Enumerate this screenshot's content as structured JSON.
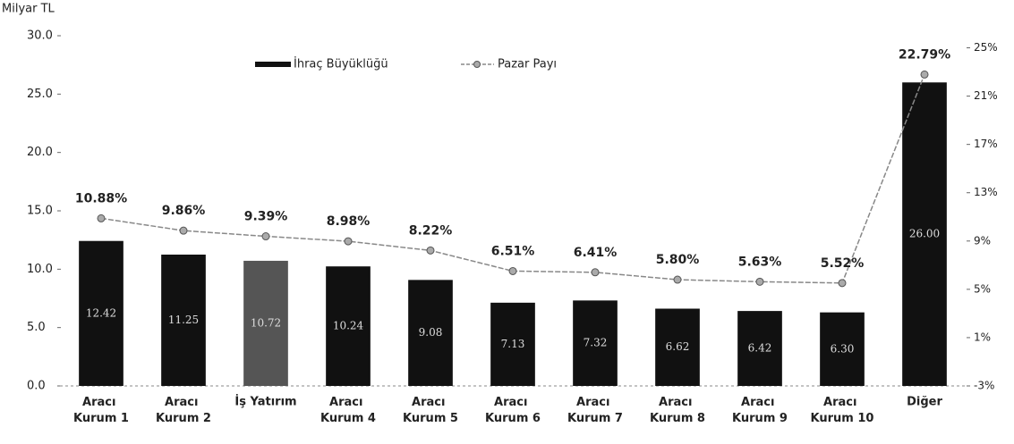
{
  "chart_data": {
    "type": "bar-line",
    "y_label": "Milyar TL",
    "categories": [
      "Aracı Kurum 1",
      "Aracı Kurum 2",
      "İş Yatırım",
      "Aracı Kurum 4",
      "Aracı Kurum 5",
      "Aracı Kurum 6",
      "Aracı Kurum 7",
      "Aracı Kurum 8",
      "Aracı Kurum 9",
      "Aracı Kurum 10",
      "Diğer"
    ],
    "series": [
      {
        "name": "İhraç Büyüklüğü",
        "type": "bar",
        "colors": [
          "#111111",
          "#111111",
          "#555555",
          "#111111",
          "#111111",
          "#111111",
          "#111111",
          "#111111",
          "#111111",
          "#111111",
          "#111111"
        ],
        "values": [
          12.42,
          11.25,
          10.72,
          10.24,
          9.08,
          7.13,
          7.32,
          6.62,
          6.42,
          6.3,
          26.0
        ],
        "value_labels": [
          "12.42",
          "11.25",
          "10.72",
          "10.24",
          "9.08",
          "7.13",
          "7.32",
          "6.62",
          "6.42",
          "6.30",
          "26.00"
        ]
      },
      {
        "name": "Pazar Payı",
        "type": "line",
        "axis": "y2",
        "color": "#888888",
        "values": [
          10.88,
          9.86,
          9.39,
          8.98,
          8.22,
          6.51,
          6.41,
          5.8,
          5.63,
          5.52,
          22.79
        ],
        "value_labels": [
          "10.88%",
          "9.86%",
          "9.39%",
          "8.98%",
          "8.22%",
          "6.51%",
          "6.41%",
          "5.80%",
          "5.63%",
          "5.52%",
          "22.79%"
        ]
      }
    ],
    "ylim": [
      0,
      30
    ],
    "yticks": [
      {
        "value": 0,
        "label": "0.0"
      },
      {
        "value": 5,
        "label": "5.0"
      },
      {
        "value": 10,
        "label": "10.0"
      },
      {
        "value": 15,
        "label": "15.0"
      },
      {
        "value": 20,
        "label": "20.0"
      },
      {
        "value": 25,
        "label": "25.0"
      },
      {
        "value": 30,
        "label": "30.0"
      }
    ],
    "y2lim": [
      -3,
      26
    ],
    "y2ticks": [
      {
        "value": -3,
        "label": "-3%"
      },
      {
        "value": 1,
        "label": "1%"
      },
      {
        "value": 5,
        "label": "5%"
      },
      {
        "value": 9,
        "label": "9%"
      },
      {
        "value": 13,
        "label": "13%"
      },
      {
        "value": 17,
        "label": "17%"
      },
      {
        "value": 21,
        "label": "21%"
      },
      {
        "value": 25,
        "label": "25%"
      }
    ]
  }
}
